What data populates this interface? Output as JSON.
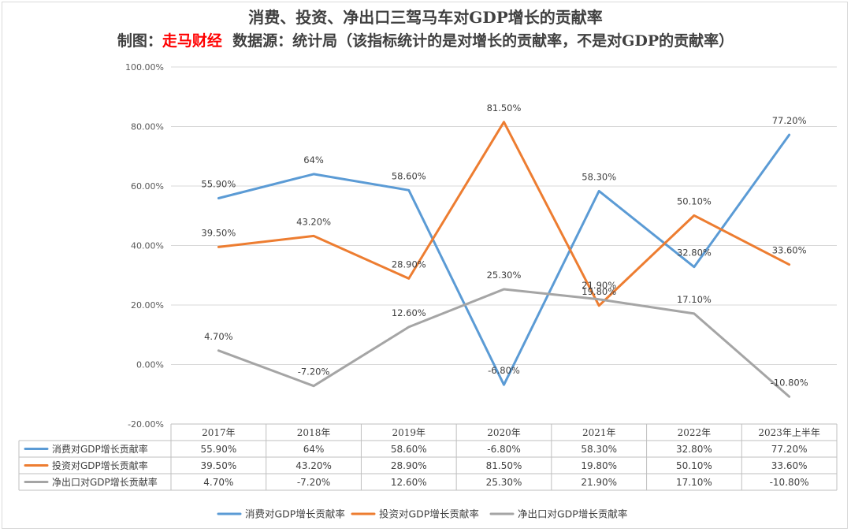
{
  "title": "消费、投资、净出口三驾马车对GDP增长的贡献率",
  "subtitle": {
    "prefix": "制图：",
    "author": "走马财经",
    "source": "数据源：统计局（该指标统计的是对增长的贡献率，不是对GDP的贡献率）"
  },
  "chart_data": {
    "type": "line",
    "categories": [
      "2017年",
      "2018年",
      "2019年",
      "2020年",
      "2021年",
      "2022年",
      "2023年上半年"
    ],
    "ylim": [
      -20,
      100
    ],
    "yticks": [
      -20,
      0,
      20,
      40,
      60,
      80,
      100
    ],
    "ytick_labels": [
      "-20.00%",
      "0.00%",
      "20.00%",
      "40.00%",
      "60.00%",
      "80.00%",
      "100.00%"
    ],
    "grid": true,
    "legend_position": "bottom",
    "data_table": true,
    "series": [
      {
        "name": "消费对GDP增长贡献率",
        "color": "#5b9bd5",
        "values": [
          55.9,
          64,
          58.6,
          -6.8,
          58.3,
          32.8,
          77.2
        ],
        "labels": [
          "55.90%",
          "64%",
          "58.60%",
          "-6.80%",
          "58.30%",
          "32.80%",
          "77.20%"
        ]
      },
      {
        "name": "投资对GDP增长贡献率",
        "color": "#ed7d31",
        "values": [
          39.5,
          43.2,
          28.9,
          81.5,
          19.8,
          50.1,
          33.6
        ],
        "labels": [
          "39.50%",
          "43.20%",
          "28.90%",
          "81.50%",
          "19.80%",
          "50.10%",
          "33.60%"
        ]
      },
      {
        "name": "净出口对GDP增长贡献率",
        "color": "#a5a5a5",
        "values": [
          4.7,
          -7.2,
          12.6,
          25.3,
          21.9,
          17.1,
          -10.8
        ],
        "labels": [
          "4.70%",
          "-7.20%",
          "12.60%",
          "25.30%",
          "21.90%",
          "17.10%",
          "-10.80%"
        ]
      }
    ]
  }
}
